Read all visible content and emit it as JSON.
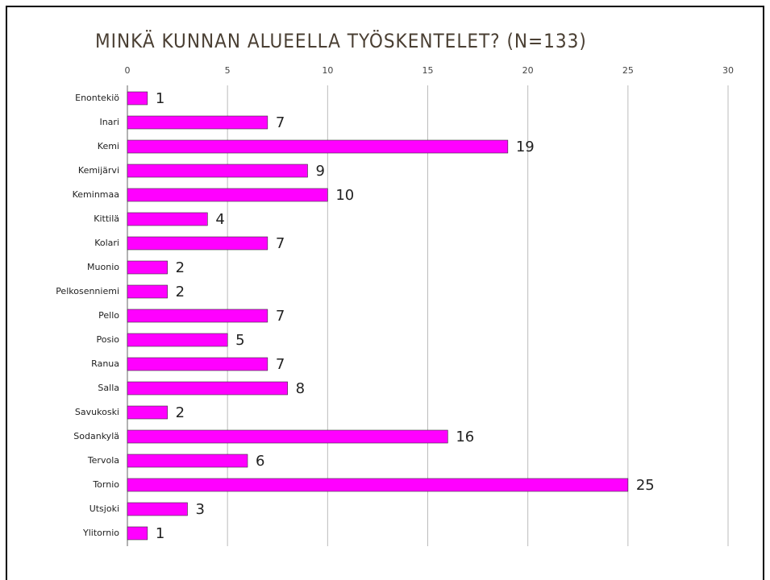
{
  "chart_data": {
    "type": "bar",
    "orientation": "horizontal",
    "title": "MINKÄ KUNNAN ALUEELLA TYÖSKENTELET? (N=133)",
    "categories": [
      "Enontekiö",
      "Inari",
      "Kemi",
      "Kemijärvi",
      "Keminmaa",
      "Kittilä",
      "Kolari",
      "Muonio",
      "Pelkosenniemi",
      "Pello",
      "Posio",
      "Ranua",
      "Salla",
      "Savukoski",
      "Sodankylä",
      "Tervola",
      "Tornio",
      "Utsjoki",
      "Ylitornio"
    ],
    "values": [
      1,
      7,
      19,
      9,
      10,
      4,
      7,
      2,
      2,
      7,
      5,
      7,
      8,
      2,
      16,
      6,
      25,
      3,
      1
    ],
    "color": "#ff00ff",
    "xlim": [
      0,
      30
    ],
    "xticks": [
      0,
      5,
      10,
      15,
      20,
      25,
      30
    ],
    "grid": true
  }
}
